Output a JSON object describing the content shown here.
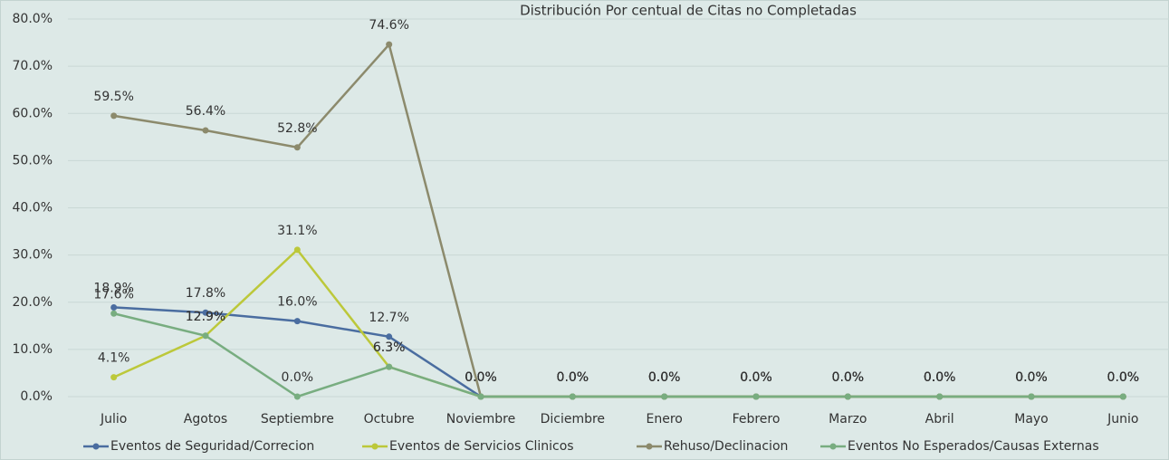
{
  "chart_data": {
    "type": "line",
    "title": "Distribución Por centual de Citas no Completadas",
    "categories": [
      "Julio",
      "Agotos",
      "Septiembre",
      "Octubre",
      "Noviembre",
      "Diciembre",
      "Enero",
      "Febrero",
      "Marzo",
      "Abril",
      "Mayo",
      "Junio"
    ],
    "series": [
      {
        "name": "Eventos de Seguridad/Correcion",
        "color": "#4a6da0",
        "values": [
          18.9,
          17.8,
          16.0,
          12.7,
          0,
          0,
          0,
          0,
          0,
          0,
          0,
          0
        ],
        "value_labels": [
          "18.9%",
          "17.8%",
          "16.0%",
          "12.7%",
          "0.0%",
          "0.0%",
          "0.0%",
          "0.0%",
          "0.0%",
          "0.0%",
          "0.0%",
          "0.0%"
        ]
      },
      {
        "name": "Eventos de Servicios Clinicos",
        "color": "#bcc83a",
        "values": [
          4.1,
          12.9,
          31.1,
          6.3,
          0,
          0,
          0,
          0,
          0,
          0,
          0,
          0
        ],
        "value_labels": [
          "4.1%",
          "12.9%",
          "31.1%",
          "6.3%",
          "0.0%",
          "0.0%",
          "0.0%",
          "0.0%",
          "0.0%",
          "0.0%",
          "0.0%",
          "0.0%"
        ]
      },
      {
        "name": "Rehuso/Declinacion",
        "color": "#8c8a6c",
        "values": [
          59.5,
          56.4,
          52.8,
          74.6,
          0,
          0,
          0,
          0,
          0,
          0,
          0,
          0
        ],
        "value_labels": [
          "59.5%",
          "56.4%",
          "52.8%",
          "74.6%",
          "0.0%",
          "0.0%",
          "0.0%",
          "0.0%",
          "0.0%",
          "0.0%",
          "0.0%",
          "0.0%"
        ]
      },
      {
        "name": "Eventos No Esperados/Causas Externas",
        "color": "#78ad80",
        "values": [
          17.6,
          12.9,
          0,
          6.3,
          0,
          0,
          0,
          0,
          0,
          0,
          0,
          0
        ],
        "value_labels": [
          "17.6%",
          "12.9%",
          "0.0%",
          "6.3%",
          "0.0%",
          "0.0%",
          "0.0%",
          "0.0%",
          "0.0%",
          "0.0%",
          "0.0%",
          "0.0%"
        ]
      }
    ],
    "ylim": [
      0,
      80
    ],
    "yticks": [
      {
        "value": 0,
        "label": "0.0%"
      },
      {
        "value": 10,
        "label": "10.0%"
      },
      {
        "value": 20,
        "label": "20.0%"
      },
      {
        "value": 30,
        "label": "30.0%"
      },
      {
        "value": 40,
        "label": "40.0%"
      },
      {
        "value": 50,
        "label": "50.0%"
      },
      {
        "value": 60,
        "label": "60.0%"
      },
      {
        "value": 70,
        "label": "70.0%"
      },
      {
        "value": 80,
        "label": "80.0%"
      }
    ],
    "grid": true,
    "legend": "bottom"
  }
}
